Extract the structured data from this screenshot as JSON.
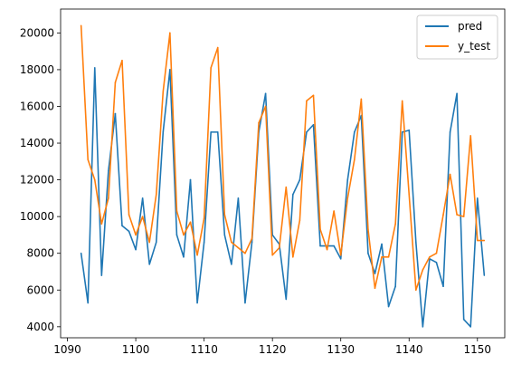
{
  "chart_data": {
    "type": "line",
    "title": "",
    "xlabel": "",
    "ylabel": "",
    "xlim": [
      1089.0,
      1154.0
    ],
    "ylim": [
      3400,
      21300
    ],
    "grid": false,
    "legend_position": "top-right",
    "x_ticks": [
      1090,
      1100,
      1110,
      1120,
      1130,
      1140,
      1150
    ],
    "y_ticks": [
      4000,
      6000,
      8000,
      10000,
      12000,
      14000,
      16000,
      18000,
      20000
    ],
    "x": [
      1092,
      1093,
      1094,
      1095,
      1096,
      1097,
      1098,
      1099,
      1100,
      1101,
      1102,
      1103,
      1104,
      1105,
      1106,
      1107,
      1108,
      1109,
      1110,
      1111,
      1112,
      1113,
      1114,
      1115,
      1116,
      1117,
      1118,
      1119,
      1120,
      1121,
      1122,
      1123,
      1124,
      1125,
      1126,
      1127,
      1128,
      1129,
      1130,
      1131,
      1132,
      1133,
      1134,
      1135,
      1136,
      1137,
      1138,
      1139,
      1140,
      1141,
      1142,
      1143,
      1144,
      1145,
      1146,
      1147,
      1148,
      1149,
      1150,
      1151
    ],
    "series": [
      {
        "name": "pred",
        "color": "#1f77b4",
        "values": [
          8000,
          5300,
          18100,
          6800,
          12500,
          15600,
          9500,
          9200,
          8200,
          11000,
          7400,
          8600,
          14600,
          18000,
          9000,
          7800,
          12000,
          5300,
          8600,
          14600,
          14600,
          9000,
          7400,
          11000,
          5300,
          8600,
          14600,
          16700,
          9000,
          8500,
          5500,
          11200,
          12000,
          14600,
          15000,
          8400,
          8400,
          8400,
          7700,
          12000,
          14600,
          15500,
          8000,
          6900,
          8500,
          5100,
          6200,
          14600,
          14700,
          8600,
          4000,
          7700,
          7500,
          6200,
          14600,
          16700,
          4400,
          4000,
          11000,
          6800
        ]
      },
      {
        "name": "y_test",
        "color": "#ff7f0e",
        "values": [
          20400,
          13100,
          12000,
          9600,
          11000,
          17300,
          18500,
          10100,
          9000,
          10000,
          8600,
          11200,
          16800,
          20000,
          10300,
          9000,
          9700,
          7900,
          9900,
          18100,
          19200,
          10100,
          8600,
          8300,
          8000,
          8800,
          15100,
          16000,
          7900,
          8300,
          11600,
          7800,
          9800,
          16300,
          16600,
          9300,
          8200,
          10300,
          7900,
          11000,
          13100,
          16400,
          9300,
          6100,
          7800,
          7800,
          9600,
          16300,
          11200,
          6000,
          7100,
          7800,
          8000,
          10100,
          12300,
          10100,
          10000,
          14400,
          8700,
          8700
        ]
      }
    ]
  }
}
